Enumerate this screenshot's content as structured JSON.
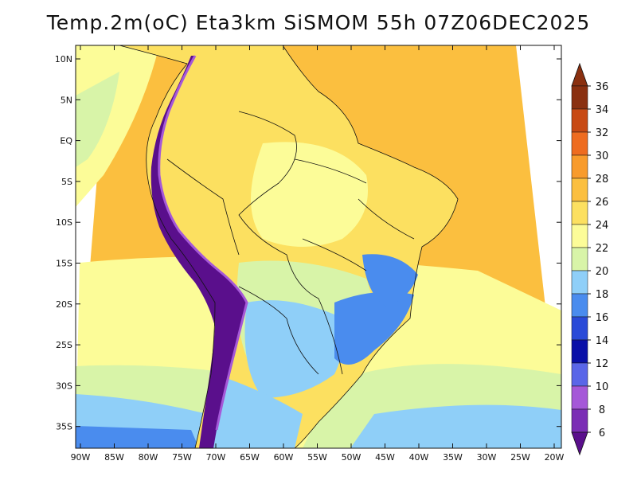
{
  "title": "Temp.2m(oC) Eta3km SiSMOM 55h 07Z06DEC2025",
  "map": {
    "lat_ticks": [
      "10N",
      "5N",
      "EQ",
      "5S",
      "10S",
      "15S",
      "20S",
      "25S",
      "30S",
      "35S"
    ],
    "lon_ticks": [
      "90W",
      "85W",
      "80W",
      "75W",
      "70W",
      "65W",
      "60W",
      "55W",
      "50W",
      "45W",
      "40W",
      "35W",
      "30W",
      "25W",
      "20W"
    ]
  },
  "colorbar": {
    "labels": [
      "36",
      "34",
      "32",
      "30",
      "28",
      "26",
      "24",
      "22",
      "20",
      "18",
      "16",
      "14",
      "12",
      "10",
      "8",
      "6"
    ],
    "colors": {
      "c6": "#5a0f8c",
      "c8": "#7b2db5",
      "c10": "#a558d8",
      "c12": "#5a66e8",
      "c14": "#0a10a8",
      "c16": "#2a4ad8",
      "c18": "#4a8cee",
      "c20": "#8fcff8",
      "c22": "#d8f4a8",
      "c24": "#fcfc98",
      "c26": "#fce060",
      "c28": "#fbbf3f",
      "c30": "#f89b2c",
      "c32": "#ee6c20",
      "c34": "#c84a14",
      "c36": "#8a3010"
    }
  }
}
